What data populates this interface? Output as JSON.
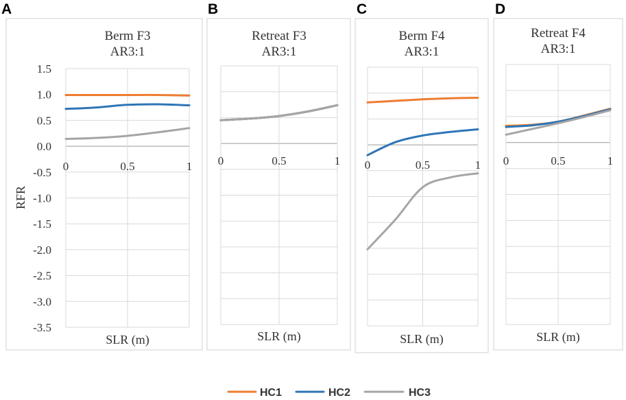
{
  "legend": {
    "entries": [
      {
        "name": "HC1",
        "color": "#ED7D31"
      },
      {
        "name": "HC2",
        "color": "#2E75B6"
      },
      {
        "name": "HC3",
        "color": "#A5A5A5"
      }
    ]
  },
  "chart_data": [
    {
      "letter": "A",
      "type": "line",
      "title_lines": [
        "Berm F3",
        "AR3:1"
      ],
      "xlabel": "SLR (m)",
      "ylabel": "RFR",
      "x_ticks": [
        "0",
        "0.5",
        "1"
      ],
      "y_ticks": [
        "1.5",
        "1.0",
        "0.5",
        "0.0",
        "-0.5",
        "-1.0",
        "-1.5",
        "-2.0",
        "-2.5",
        "-3.0",
        "-3.5"
      ],
      "xlim": [
        0,
        1
      ],
      "ylim": [
        -3.5,
        1.5
      ],
      "series": [
        {
          "name": "HC1",
          "x": [
            0,
            0.25,
            0.5,
            0.75,
            1
          ],
          "values": [
            0.99,
            0.99,
            0.99,
            0.99,
            0.98
          ]
        },
        {
          "name": "HC2",
          "x": [
            0,
            0.25,
            0.5,
            0.75,
            1
          ],
          "values": [
            0.72,
            0.75,
            0.8,
            0.81,
            0.79
          ]
        },
        {
          "name": "HC3",
          "x": [
            0,
            0.25,
            0.5,
            0.75,
            1
          ],
          "values": [
            0.14,
            0.16,
            0.2,
            0.27,
            0.35
          ]
        }
      ]
    },
    {
      "letter": "B",
      "type": "line",
      "title_lines": [
        "Retreat F3",
        "AR3:1"
      ],
      "xlabel": "SLR (m)",
      "ylabel": "",
      "x_ticks": [
        "0",
        "0.5",
        "1"
      ],
      "y_ticks": [],
      "xlim": [
        0,
        1
      ],
      "ylim": [
        -3.5,
        1.5
      ],
      "series": [
        {
          "name": "HC1",
          "x": [
            0,
            0.25,
            0.5,
            0.75,
            1
          ],
          "values": [
            0.45,
            0.48,
            0.53,
            0.62,
            0.74
          ]
        },
        {
          "name": "HC2",
          "x": [
            0,
            0.25,
            0.5,
            0.75,
            1
          ],
          "values": [
            0.45,
            0.48,
            0.53,
            0.62,
            0.74
          ]
        },
        {
          "name": "HC3",
          "x": [
            0,
            0.25,
            0.5,
            0.75,
            1
          ],
          "values": [
            0.45,
            0.48,
            0.53,
            0.62,
            0.74
          ]
        }
      ]
    },
    {
      "letter": "C",
      "type": "line",
      "title_lines": [
        "Berm F4",
        "AR3:1"
      ],
      "xlabel": "SLR (m)",
      "ylabel": "",
      "x_ticks": [
        "0",
        "0.5",
        "1"
      ],
      "y_ticks": [],
      "xlim": [
        0,
        1
      ],
      "ylim": [
        -3.5,
        1.5
      ],
      "series": [
        {
          "name": "HC1",
          "x": [
            0,
            0.25,
            0.5,
            0.75,
            1
          ],
          "values": [
            0.82,
            0.85,
            0.88,
            0.9,
            0.91
          ]
        },
        {
          "name": "HC2",
          "x": [
            0,
            0.25,
            0.5,
            0.75,
            1
          ],
          "values": [
            -0.2,
            0.05,
            0.18,
            0.25,
            0.3
          ]
        },
        {
          "name": "HC3",
          "x": [
            0,
            0.25,
            0.5,
            0.75,
            1
          ],
          "values": [
            -2.02,
            -1.45,
            -0.82,
            -0.63,
            -0.55
          ]
        }
      ]
    },
    {
      "letter": "D",
      "type": "line",
      "title_lines": [
        "Retreat F4",
        "AR3:1"
      ],
      "xlabel": "SLR (m)",
      "ylabel": "",
      "x_ticks": [
        "0",
        "0.5",
        "1"
      ],
      "y_ticks": [],
      "xlim": [
        0,
        1
      ],
      "ylim": [
        -3.5,
        1.5
      ],
      "series": [
        {
          "name": "HC1",
          "x": [
            0,
            0.25,
            0.5,
            0.75,
            1
          ],
          "values": [
            0.32,
            0.34,
            0.4,
            0.52,
            0.65
          ]
        },
        {
          "name": "HC2",
          "x": [
            0,
            0.25,
            0.5,
            0.75,
            1
          ],
          "values": [
            0.3,
            0.33,
            0.4,
            0.51,
            0.64
          ]
        },
        {
          "name": "HC3",
          "x": [
            0,
            0.25,
            0.5,
            0.75,
            1
          ],
          "values": [
            0.15,
            0.26,
            0.37,
            0.49,
            0.62
          ]
        }
      ]
    }
  ]
}
